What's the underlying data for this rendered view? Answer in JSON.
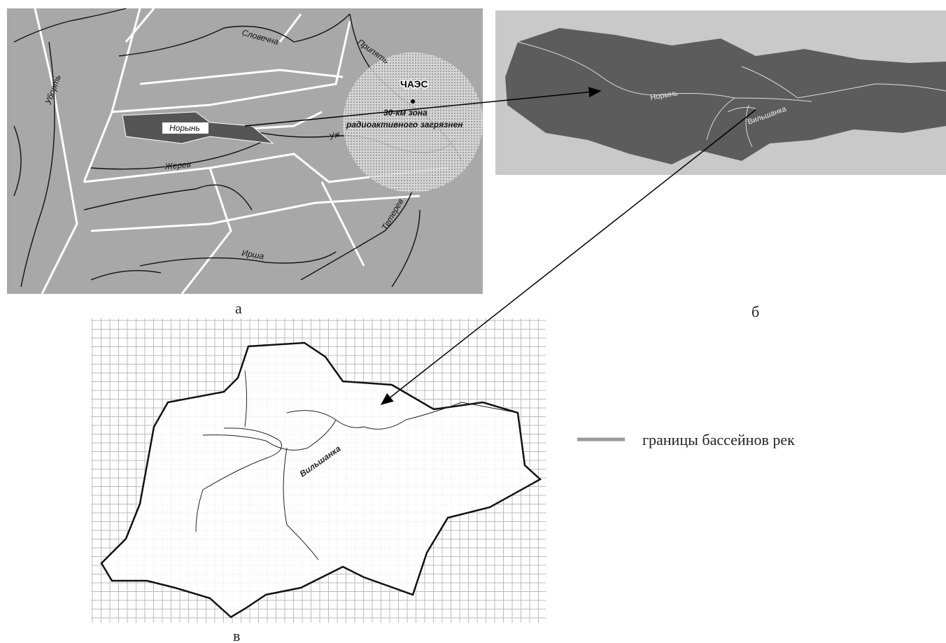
{
  "panels": {
    "a": {
      "label": "а",
      "rivers": [
        "Словечна",
        "Уборть",
        "Припять",
        "Норынь",
        "Уж",
        "Жерев",
        "Ирша",
        "Тетерев"
      ],
      "npp": "ЧАЭС",
      "zone": [
        "30-км зона",
        "радиоактивного загрязнен"
      ]
    },
    "b": {
      "label": "б",
      "rivers": [
        "Норынь",
        "Вильшанка"
      ]
    },
    "c": {
      "label": "в",
      "rivers": [
        "Вильшанка"
      ]
    }
  },
  "legend": {
    "label": "границы бассейнов рек"
  }
}
